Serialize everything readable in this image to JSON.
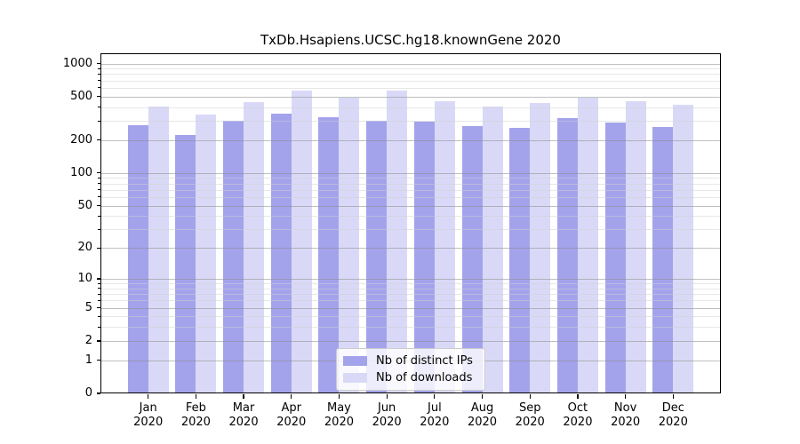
{
  "chart_data": {
    "type": "bar",
    "title": "TxDb.Hsapiens.UCSC.hg18.knownGene 2020",
    "categories": [
      "Jan",
      "Feb",
      "Mar",
      "Apr",
      "May",
      "Jun",
      "Jul",
      "Aug",
      "Sep",
      "Oct",
      "Nov",
      "Dec"
    ],
    "category_year": "2020",
    "series": [
      {
        "name": "Nb of distinct IPs",
        "color": "#a3a3ec",
        "values": [
          272,
          225,
          301,
          351,
          326,
          302,
          294,
          267,
          259,
          316,
          291,
          265
        ]
      },
      {
        "name": "Nb of downloads",
        "color": "#d9d9f7",
        "values": [
          406,
          341,
          445,
          570,
          488,
          563,
          451,
          406,
          439,
          488,
          452,
          421
        ]
      }
    ],
    "xlabel": "",
    "ylabel": "",
    "y_axis": {
      "scale": "log1p",
      "ticks": [
        0,
        1,
        2,
        5,
        10,
        20,
        50,
        100,
        200,
        500,
        1000
      ],
      "minor_ticks": [
        3,
        4,
        6,
        7,
        8,
        9,
        30,
        40,
        60,
        70,
        80,
        90,
        300,
        400,
        600,
        700,
        800,
        900
      ],
      "axis_max": 1239
    },
    "grid": "on",
    "legend_position": "lower-center"
  },
  "colors": {
    "background": "#ffffff",
    "bar_distinct_ips": "#a3a3ec",
    "bar_downloads": "#d9d9f7",
    "grid_major": "rgba(140,140,140,0.55)",
    "grid_minor": "rgba(208,208,208,0.5)",
    "spine": "#000000",
    "text": "#000000",
    "legend_border": "#cccccc"
  }
}
